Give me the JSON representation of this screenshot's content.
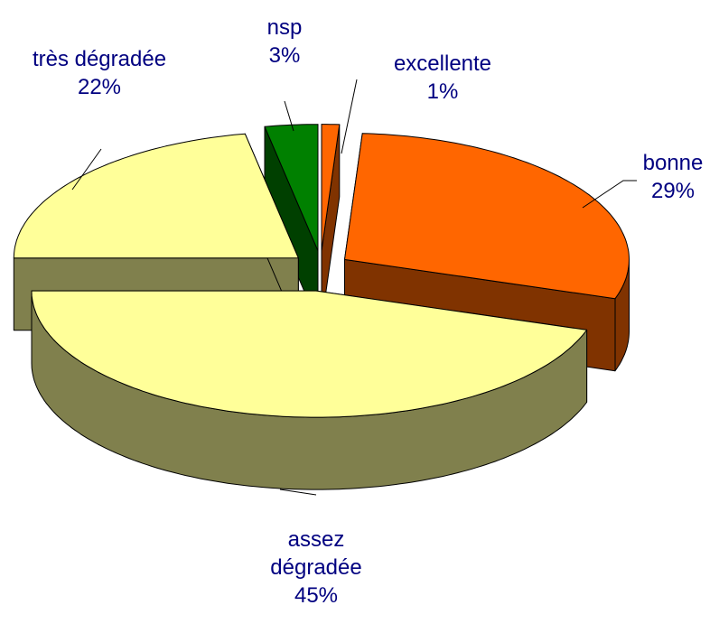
{
  "chart_data": {
    "type": "pie3d",
    "categories": [
      "excellente",
      "bonne",
      "assez dégradée",
      "très dégradée",
      "nsp"
    ],
    "values": [
      1,
      29,
      45,
      22,
      3
    ],
    "value_labels": [
      "1%",
      "29%",
      "45%",
      "22%",
      "3%"
    ],
    "colors": [
      "#ff6600",
      "#ff6600",
      "#ffff99",
      "#ffff99",
      "#008000"
    ]
  }
}
